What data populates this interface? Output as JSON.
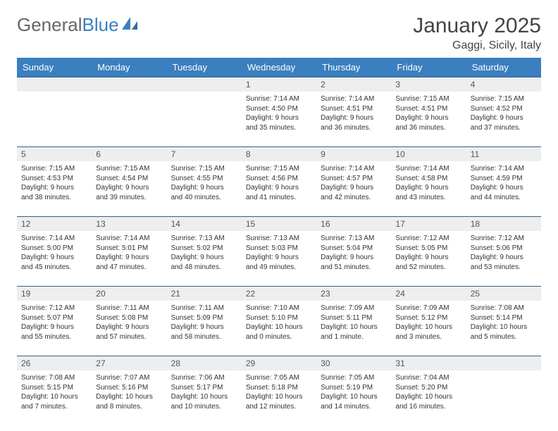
{
  "logo": {
    "text1": "General",
    "text2": "Blue"
  },
  "header": {
    "month_title": "January 2025",
    "location": "Gaggi, Sicily, Italy"
  },
  "colors": {
    "header_bg": "#3a7fbf",
    "header_text": "#ffffff",
    "daynum_bg": "#eceef0",
    "border": "#39607f"
  },
  "daynames": [
    "Sunday",
    "Monday",
    "Tuesday",
    "Wednesday",
    "Thursday",
    "Friday",
    "Saturday"
  ],
  "weeks": [
    [
      {
        "n": "",
        "sr": "",
        "ss": "",
        "dl": ""
      },
      {
        "n": "",
        "sr": "",
        "ss": "",
        "dl": ""
      },
      {
        "n": "",
        "sr": "",
        "ss": "",
        "dl": ""
      },
      {
        "n": "1",
        "sr": "Sunrise: 7:14 AM",
        "ss": "Sunset: 4:50 PM",
        "dl": "Daylight: 9 hours and 35 minutes."
      },
      {
        "n": "2",
        "sr": "Sunrise: 7:14 AM",
        "ss": "Sunset: 4:51 PM",
        "dl": "Daylight: 9 hours and 36 minutes."
      },
      {
        "n": "3",
        "sr": "Sunrise: 7:15 AM",
        "ss": "Sunset: 4:51 PM",
        "dl": "Daylight: 9 hours and 36 minutes."
      },
      {
        "n": "4",
        "sr": "Sunrise: 7:15 AM",
        "ss": "Sunset: 4:52 PM",
        "dl": "Daylight: 9 hours and 37 minutes."
      }
    ],
    [
      {
        "n": "5",
        "sr": "Sunrise: 7:15 AM",
        "ss": "Sunset: 4:53 PM",
        "dl": "Daylight: 9 hours and 38 minutes."
      },
      {
        "n": "6",
        "sr": "Sunrise: 7:15 AM",
        "ss": "Sunset: 4:54 PM",
        "dl": "Daylight: 9 hours and 39 minutes."
      },
      {
        "n": "7",
        "sr": "Sunrise: 7:15 AM",
        "ss": "Sunset: 4:55 PM",
        "dl": "Daylight: 9 hours and 40 minutes."
      },
      {
        "n": "8",
        "sr": "Sunrise: 7:15 AM",
        "ss": "Sunset: 4:56 PM",
        "dl": "Daylight: 9 hours and 41 minutes."
      },
      {
        "n": "9",
        "sr": "Sunrise: 7:14 AM",
        "ss": "Sunset: 4:57 PM",
        "dl": "Daylight: 9 hours and 42 minutes."
      },
      {
        "n": "10",
        "sr": "Sunrise: 7:14 AM",
        "ss": "Sunset: 4:58 PM",
        "dl": "Daylight: 9 hours and 43 minutes."
      },
      {
        "n": "11",
        "sr": "Sunrise: 7:14 AM",
        "ss": "Sunset: 4:59 PM",
        "dl": "Daylight: 9 hours and 44 minutes."
      }
    ],
    [
      {
        "n": "12",
        "sr": "Sunrise: 7:14 AM",
        "ss": "Sunset: 5:00 PM",
        "dl": "Daylight: 9 hours and 45 minutes."
      },
      {
        "n": "13",
        "sr": "Sunrise: 7:14 AM",
        "ss": "Sunset: 5:01 PM",
        "dl": "Daylight: 9 hours and 47 minutes."
      },
      {
        "n": "14",
        "sr": "Sunrise: 7:13 AM",
        "ss": "Sunset: 5:02 PM",
        "dl": "Daylight: 9 hours and 48 minutes."
      },
      {
        "n": "15",
        "sr": "Sunrise: 7:13 AM",
        "ss": "Sunset: 5:03 PM",
        "dl": "Daylight: 9 hours and 49 minutes."
      },
      {
        "n": "16",
        "sr": "Sunrise: 7:13 AM",
        "ss": "Sunset: 5:04 PM",
        "dl": "Daylight: 9 hours and 51 minutes."
      },
      {
        "n": "17",
        "sr": "Sunrise: 7:12 AM",
        "ss": "Sunset: 5:05 PM",
        "dl": "Daylight: 9 hours and 52 minutes."
      },
      {
        "n": "18",
        "sr": "Sunrise: 7:12 AM",
        "ss": "Sunset: 5:06 PM",
        "dl": "Daylight: 9 hours and 53 minutes."
      }
    ],
    [
      {
        "n": "19",
        "sr": "Sunrise: 7:12 AM",
        "ss": "Sunset: 5:07 PM",
        "dl": "Daylight: 9 hours and 55 minutes."
      },
      {
        "n": "20",
        "sr": "Sunrise: 7:11 AM",
        "ss": "Sunset: 5:08 PM",
        "dl": "Daylight: 9 hours and 57 minutes."
      },
      {
        "n": "21",
        "sr": "Sunrise: 7:11 AM",
        "ss": "Sunset: 5:09 PM",
        "dl": "Daylight: 9 hours and 58 minutes."
      },
      {
        "n": "22",
        "sr": "Sunrise: 7:10 AM",
        "ss": "Sunset: 5:10 PM",
        "dl": "Daylight: 10 hours and 0 minutes."
      },
      {
        "n": "23",
        "sr": "Sunrise: 7:09 AM",
        "ss": "Sunset: 5:11 PM",
        "dl": "Daylight: 10 hours and 1 minute."
      },
      {
        "n": "24",
        "sr": "Sunrise: 7:09 AM",
        "ss": "Sunset: 5:12 PM",
        "dl": "Daylight: 10 hours and 3 minutes."
      },
      {
        "n": "25",
        "sr": "Sunrise: 7:08 AM",
        "ss": "Sunset: 5:14 PM",
        "dl": "Daylight: 10 hours and 5 minutes."
      }
    ],
    [
      {
        "n": "26",
        "sr": "Sunrise: 7:08 AM",
        "ss": "Sunset: 5:15 PM",
        "dl": "Daylight: 10 hours and 7 minutes."
      },
      {
        "n": "27",
        "sr": "Sunrise: 7:07 AM",
        "ss": "Sunset: 5:16 PM",
        "dl": "Daylight: 10 hours and 8 minutes."
      },
      {
        "n": "28",
        "sr": "Sunrise: 7:06 AM",
        "ss": "Sunset: 5:17 PM",
        "dl": "Daylight: 10 hours and 10 minutes."
      },
      {
        "n": "29",
        "sr": "Sunrise: 7:05 AM",
        "ss": "Sunset: 5:18 PM",
        "dl": "Daylight: 10 hours and 12 minutes."
      },
      {
        "n": "30",
        "sr": "Sunrise: 7:05 AM",
        "ss": "Sunset: 5:19 PM",
        "dl": "Daylight: 10 hours and 14 minutes."
      },
      {
        "n": "31",
        "sr": "Sunrise: 7:04 AM",
        "ss": "Sunset: 5:20 PM",
        "dl": "Daylight: 10 hours and 16 minutes."
      },
      {
        "n": "",
        "sr": "",
        "ss": "",
        "dl": ""
      }
    ]
  ]
}
